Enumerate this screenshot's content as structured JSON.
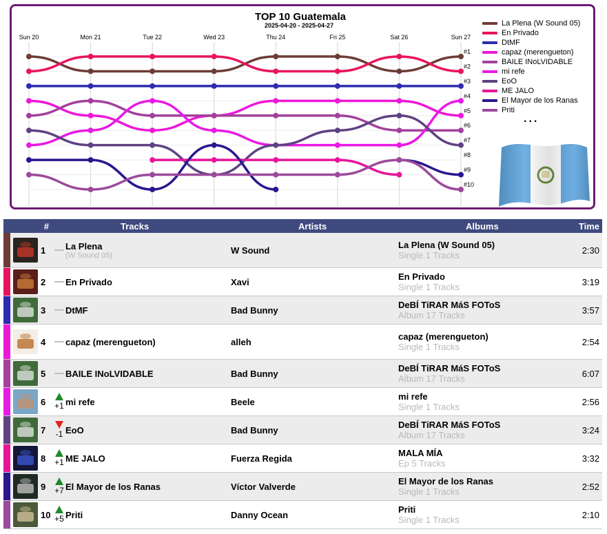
{
  "chart": {
    "title": "TOP 10 Guatemala",
    "subtitle": "2025-04-20 - 2025-04-27",
    "more": "...",
    "legend": [
      {
        "label": "La Plena (W Sound 05)",
        "color": "#6d3c36"
      },
      {
        "label": "En Privado",
        "color": "#e8145e"
      },
      {
        "label": "DtMF",
        "color": "#2d2bb0"
      },
      {
        "label": "capaz (merengueton)",
        "color": "#ee17d8"
      },
      {
        "label": "BAILE INoLVIDABLE",
        "color": "#a3409c"
      },
      {
        "label": "mi refe",
        "color": "#e819e6"
      },
      {
        "label": "EoO",
        "color": "#5e4282"
      },
      {
        "label": "ME JALO",
        "color": "#e8159a"
      },
      {
        "label": "El Mayor de los Ranas",
        "color": "#2a168f"
      },
      {
        "label": "Priti",
        "color": "#9b4a9c"
      }
    ]
  },
  "chart_data": {
    "type": "line",
    "title": "TOP 10 Guatemala",
    "subtitle": "2025-04-20 - 2025-04-27",
    "x": [
      "Sun 20",
      "Mon 21",
      "Tue 22",
      "Wed 23",
      "Thu 24",
      "Fri 25",
      "Sat 26",
      "Sun 27"
    ],
    "y_tick_labels": [
      "#1",
      "#2",
      "#3",
      "#4",
      "#5",
      "#6",
      "#7",
      "#8",
      "#9",
      "#10"
    ],
    "y_inverted": true,
    "ylim": [
      1,
      10
    ],
    "grid": true,
    "legend_position": "right",
    "series": [
      {
        "name": "La Plena (W Sound 05)",
        "color": "#6d3c36",
        "values": [
          1,
          2,
          2,
          2,
          1,
          1,
          2,
          1
        ]
      },
      {
        "name": "En Privado",
        "color": "#e8145e",
        "values": [
          2,
          1,
          1,
          1,
          2,
          2,
          1,
          2
        ]
      },
      {
        "name": "DtMF",
        "color": "#2d2bb0",
        "values": [
          3,
          3,
          3,
          3,
          3,
          3,
          3,
          3
        ]
      },
      {
        "name": "capaz (merengueton)",
        "color": "#ee17d8",
        "values": [
          4,
          5,
          6,
          5,
          4,
          4,
          4,
          5
        ]
      },
      {
        "name": "BAILE INoLVIDABLE",
        "color": "#a3409c",
        "values": [
          5,
          4,
          5,
          5,
          5,
          5,
          6,
          6
        ]
      },
      {
        "name": "mi refe",
        "color": "#e819e6",
        "values": [
          7,
          6,
          4,
          6,
          7,
          7,
          7,
          4
        ]
      },
      {
        "name": "EoO",
        "color": "#5e4282",
        "values": [
          6,
          7,
          7,
          9,
          7,
          6,
          5,
          7
        ]
      },
      {
        "name": "ME JALO",
        "color": "#e8159a",
        "values": [
          null,
          null,
          8,
          8,
          8,
          8,
          9,
          null
        ]
      },
      {
        "name": "El Mayor de los Ranas",
        "color": "#2a168f",
        "values": [
          8,
          8,
          10,
          7,
          10,
          null,
          8,
          9
        ]
      },
      {
        "name": "Priti",
        "color": "#9b4a9c",
        "values": [
          9,
          10,
          9,
          9,
          9,
          9,
          8,
          10
        ]
      }
    ]
  },
  "table": {
    "headers": {
      "rank": "#",
      "tracks": "Tracks",
      "artists": "Artists",
      "albums": "Albums",
      "time": "Time"
    },
    "rows": [
      {
        "rank": "1",
        "change": "",
        "direction": "none",
        "track": "La Plena",
        "track_sub": "(W Sound 05)",
        "artist": "W Sound",
        "album": "La Plena (W Sound 05)",
        "album_sub": "Single 1 Tracks",
        "time": "2:30",
        "color": "#6d3c36",
        "cover_bg": "#2b2320",
        "cover_accent": "#d13a2a"
      },
      {
        "rank": "2",
        "change": "",
        "direction": "none",
        "track": "En Privado",
        "track_sub": "",
        "artist": "Xavi",
        "album": "En Privado",
        "album_sub": "Single 1 Tracks",
        "time": "3:19",
        "color": "#e8145e",
        "cover_bg": "#5a1f1a",
        "cover_accent": "#d4843c"
      },
      {
        "rank": "3",
        "change": "",
        "direction": "none",
        "track": "DtMF",
        "track_sub": "",
        "artist": "Bad Bunny",
        "album": "DeBÍ TiRAR MáS FOToS",
        "album_sub": "Album 17 Tracks",
        "time": "3:57",
        "color": "#2d2bb0",
        "cover_bg": "#3f6b3a",
        "cover_accent": "#e8e8e8"
      },
      {
        "rank": "4",
        "change": "",
        "direction": "none",
        "track": "capaz (merengueton)",
        "track_sub": "",
        "artist": "alleh",
        "album": "capaz (merengueton)",
        "album_sub": "Single 1 Tracks",
        "time": "2:54",
        "color": "#ee17d8",
        "cover_bg": "#f2eee6",
        "cover_accent": "#b5651d"
      },
      {
        "rank": "5",
        "change": "",
        "direction": "none",
        "track": "BAILE INoLVIDABLE",
        "track_sub": "",
        "artist": "Bad Bunny",
        "album": "DeBÍ TiRAR MáS FOToS",
        "album_sub": "Album 17 Tracks",
        "time": "6:07",
        "color": "#a3409c",
        "cover_bg": "#3f6b3a",
        "cover_accent": "#e8e8e8"
      },
      {
        "rank": "6",
        "change": "+1",
        "direction": "up",
        "track": "mi refe",
        "track_sub": "",
        "artist": "Beele",
        "album": "mi refe",
        "album_sub": "Single 1 Tracks",
        "time": "2:56",
        "color": "#e819e6",
        "cover_bg": "#7aa7c7",
        "cover_accent": "#c98e6a"
      },
      {
        "rank": "7",
        "change": "-1",
        "direction": "down",
        "track": "EoO",
        "track_sub": "",
        "artist": "Bad Bunny",
        "album": "DeBÍ TiRAR MáS FOToS",
        "album_sub": "Album 17 Tracks",
        "time": "3:24",
        "color": "#5e4282",
        "cover_bg": "#3f6b3a",
        "cover_accent": "#e8e8e8"
      },
      {
        "rank": "8",
        "change": "+1",
        "direction": "up",
        "track": "ME JALO",
        "track_sub": "",
        "artist": "Fuerza Regida",
        "album": "MALA MÍA",
        "album_sub": "Ep 5 Tracks",
        "time": "3:32",
        "color": "#e8159a",
        "cover_bg": "#14163a",
        "cover_accent": "#3a5ad8"
      },
      {
        "rank": "9",
        "change": "+7",
        "direction": "up",
        "track": "El Mayor de los Ranas",
        "track_sub": "",
        "artist": "Víctor Valverde",
        "album": "El Mayor de los Ranas",
        "album_sub": "Single 1 Tracks",
        "time": "2:52",
        "color": "#2a168f",
        "cover_bg": "#1f2a22",
        "cover_accent": "#c9c9c9"
      },
      {
        "rank": "10",
        "change": "+5",
        "direction": "up",
        "track": "Priti",
        "track_sub": "",
        "artist": "Danny Ocean",
        "album": "Priti",
        "album_sub": "Single 1 Tracks",
        "time": "2:10",
        "color": "#9b4a9c",
        "cover_bg": "#4a5a3a",
        "cover_accent": "#d9c7a0"
      }
    ]
  }
}
